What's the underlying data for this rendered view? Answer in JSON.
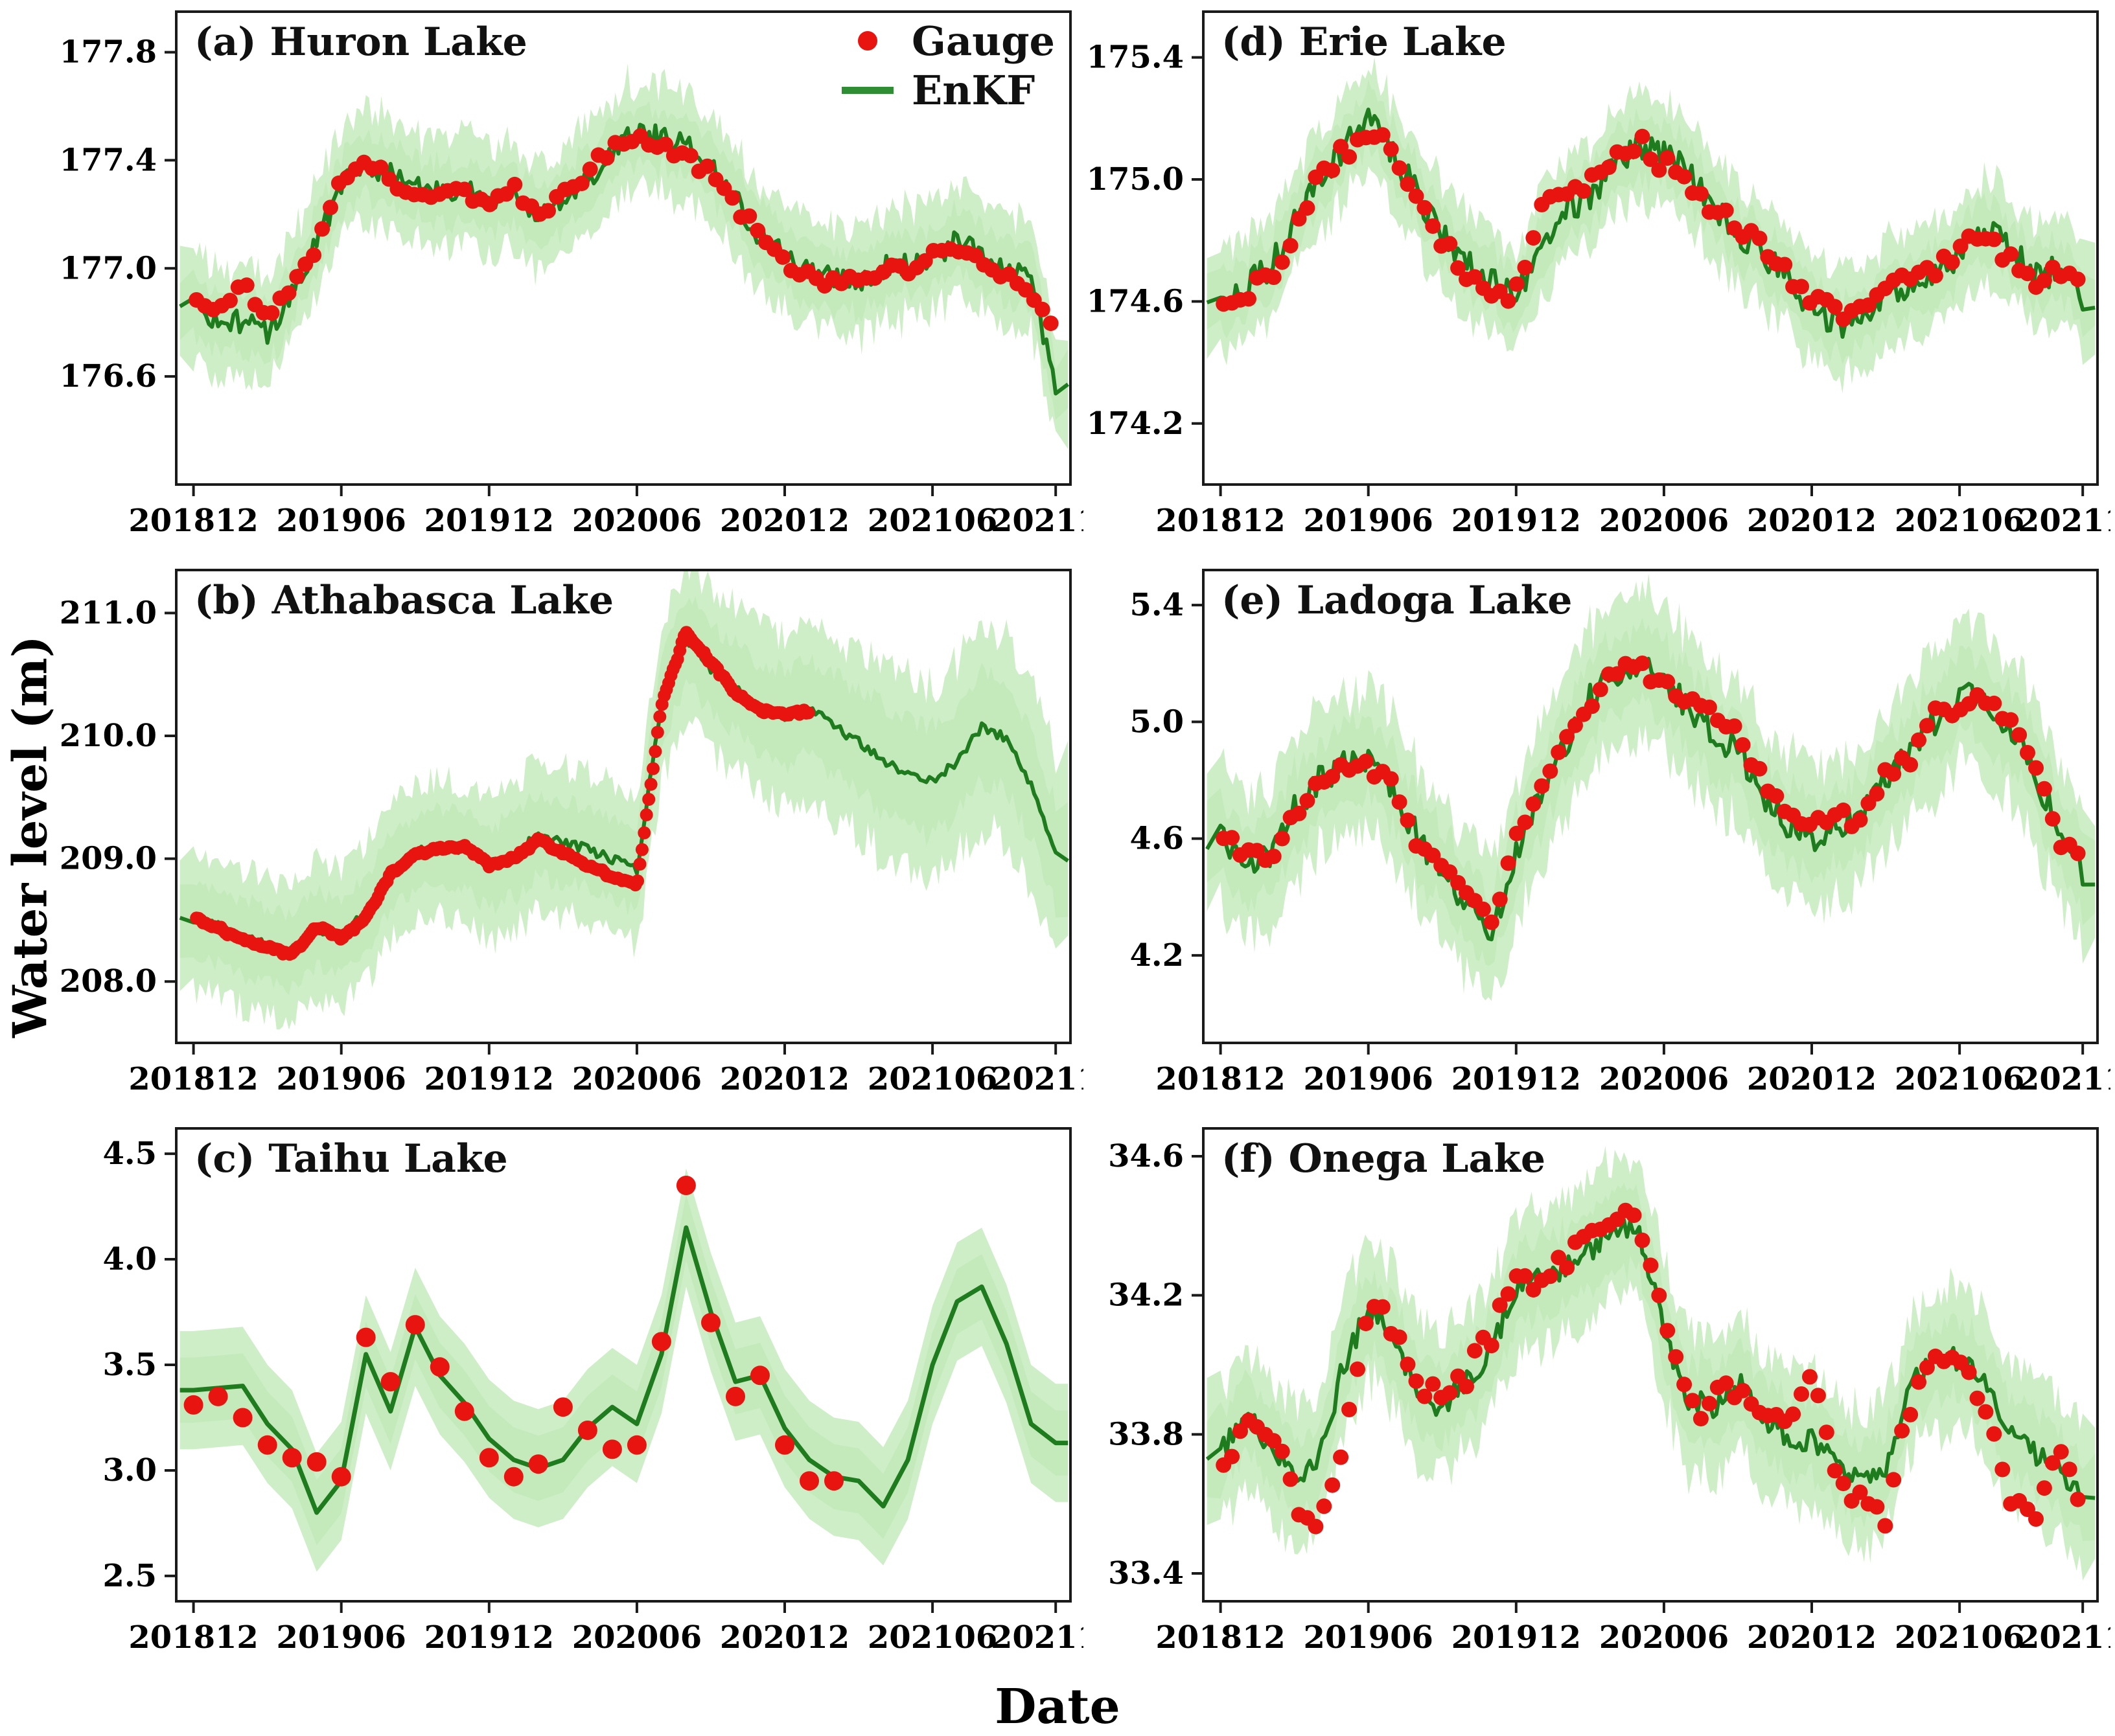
{
  "figure": {
    "ylabel": "Water level (m)",
    "xlabel": "Date",
    "legend": {
      "gauge_label": "Gauge",
      "enkf_label": "EnKF"
    },
    "colors": {
      "enkf_line": "#1e7b1e",
      "band_outer": "#cdeec6",
      "band_inner": "#bfe7b4",
      "gauge": "#e81410",
      "axis": "#1a1a1a"
    },
    "x_axis": {
      "unit": "months since 201812",
      "tick_months": [
        0,
        6,
        12,
        18,
        24,
        30,
        35
      ],
      "tick_labels": [
        "201812",
        "201906",
        "201912",
        "202006",
        "202012",
        "202106",
        "202111"
      ]
    }
  },
  "chart_data": [
    {
      "id": "a",
      "title": "(a) Huron Lake",
      "type": "line",
      "series_names": [
        "Gauge",
        "EnKF",
        "EnKF spread band"
      ],
      "ylim": [
        176.2,
        177.95
      ],
      "yticks": [
        176.6,
        177.0,
        177.4,
        177.8
      ],
      "ytick_labels": [
        "176.6",
        "177.0",
        "177.4",
        "177.8"
      ],
      "enkf_monthly": [
        176.85,
        176.82,
        176.8,
        176.76,
        176.92,
        177.1,
        177.3,
        177.38,
        177.35,
        177.3,
        177.28,
        177.3,
        177.25,
        177.28,
        177.18,
        177.25,
        177.33,
        177.44,
        177.5,
        177.48,
        177.45,
        177.38,
        177.25,
        177.12,
        177.05,
        176.98,
        176.96,
        176.95,
        177.0,
        177.02,
        177.05,
        177.1,
        177.05,
        177.0,
        176.97,
        176.55
      ],
      "gauge_monthly": [
        176.88,
        176.85,
        176.95,
        176.8,
        176.95,
        177.08,
        177.32,
        177.42,
        177.33,
        177.25,
        177.3,
        177.28,
        177.22,
        177.3,
        177.18,
        177.28,
        177.36,
        177.45,
        177.47,
        177.45,
        177.42,
        177.35,
        177.22,
        177.15,
        177.02,
        176.97,
        176.95,
        176.97,
        176.98,
        177.0,
        177.04,
        177.08,
        177.02,
        176.98,
        176.92,
        176.75
      ],
      "band_halfwidth": 0.2,
      "gauge_end_month": 35,
      "gauge_dense": false,
      "style": {
        "seed": 1,
        "line_noise": 0.045,
        "band_noise": 0.3,
        "gauge_jitter": 0.03,
        "dot_r": 12,
        "dot_step": 0.34,
        "sample_step": 0.125
      }
    },
    {
      "id": "b",
      "title": "(b) Athabasca Lake",
      "type": "line",
      "series_names": [
        "Gauge",
        "EnKF",
        "EnKF spread band"
      ],
      "ylim": [
        207.5,
        211.35
      ],
      "yticks": [
        208.0,
        209.0,
        210.0,
        211.0
      ],
      "ytick_labels": [
        "208.0",
        "209.0",
        "210.0",
        "211.0"
      ],
      "enkf_monthly": [
        208.5,
        208.45,
        208.35,
        208.3,
        208.25,
        208.42,
        208.38,
        208.55,
        208.9,
        209.05,
        209.1,
        209.05,
        208.92,
        209.02,
        209.2,
        209.12,
        209.08,
        209.0,
        208.9,
        210.3,
        210.78,
        210.55,
        210.38,
        210.22,
        210.15,
        210.22,
        210.08,
        209.95,
        209.8,
        209.68,
        209.62,
        209.8,
        210.08,
        209.98,
        209.6,
        209.02
      ],
      "gauge_monthly": [
        208.52,
        208.44,
        208.33,
        208.28,
        208.22,
        208.45,
        208.35,
        208.52,
        208.88,
        209.03,
        209.08,
        209.1,
        208.95,
        209.0,
        209.15,
        209.05,
        208.95,
        208.85,
        208.78,
        210.25,
        210.85,
        210.6,
        210.35,
        210.2,
        210.18,
        210.2
      ],
      "band_halfwidth": [
        0.55,
        0.55,
        0.55,
        0.55,
        0.55,
        0.55,
        0.55,
        0.55,
        0.55,
        0.55,
        0.55,
        0.55,
        0.6,
        0.6,
        0.6,
        0.6,
        0.6,
        0.6,
        0.65,
        0.65,
        0.65,
        0.65,
        0.65,
        0.65,
        0.7,
        0.7,
        0.75,
        0.75,
        0.8,
        0.8,
        0.8,
        0.8,
        0.8,
        0.8,
        0.8,
        0.8
      ],
      "gauge_end_month": 25,
      "gauge_dense": true,
      "style": {
        "seed": 2,
        "line_noise": 0.04,
        "band_noise": 0.22,
        "gauge_jitter": 0.02,
        "dot_r": 10,
        "dot_step": 0.09,
        "sample_step": 0.125
      }
    },
    {
      "id": "c",
      "title": "(c) Taihu Lake",
      "type": "line",
      "series_names": [
        "Gauge",
        "EnKF",
        "EnKF spread band"
      ],
      "ylim": [
        2.38,
        4.62
      ],
      "yticks": [
        2.5,
        3.0,
        3.5,
        4.0,
        4.5
      ],
      "ytick_labels": [
        "2.5",
        "3.0",
        "3.5",
        "4.0",
        "4.5"
      ],
      "enkf_monthly": [
        3.38,
        3.39,
        3.4,
        3.22,
        3.1,
        2.8,
        2.95,
        3.55,
        3.28,
        3.68,
        3.45,
        3.32,
        3.15,
        3.05,
        3.01,
        3.05,
        3.2,
        3.3,
        3.22,
        3.55,
        4.15,
        3.75,
        3.42,
        3.45,
        3.2,
        3.05,
        2.97,
        2.95,
        2.83,
        3.05,
        3.5,
        3.8,
        3.87,
        3.6,
        3.22,
        3.13
      ],
      "gauge_monthly": [
        3.31,
        3.35,
        3.25,
        3.12,
        3.06,
        3.04,
        2.97,
        3.63,
        3.42,
        3.69,
        3.49,
        3.28,
        3.06,
        2.97,
        3.03,
        3.3,
        3.19,
        3.1,
        3.12,
        3.61,
        4.35,
        3.7,
        3.35,
        3.45,
        3.12,
        2.95,
        2.95
      ],
      "band_halfwidth": 0.28,
      "gauge_end_month": 26,
      "gauge_dense": false,
      "style": {
        "seed": 3,
        "line_noise": 0,
        "band_noise": 0,
        "gauge_jitter": 0,
        "dot_r": 15,
        "dot_step": 1,
        "sample_step": 1
      }
    },
    {
      "id": "d",
      "title": "(d) Erie Lake",
      "type": "line",
      "series_names": [
        "Gauge",
        "EnKF",
        "EnKF spread band"
      ],
      "ylim": [
        174.0,
        175.55
      ],
      "yticks": [
        174.2,
        174.6,
        175.0,
        175.4
      ],
      "ytick_labels": [
        "174.2",
        "174.6",
        "175.0",
        "175.4"
      ],
      "enkf_monthly": [
        174.6,
        174.65,
        174.72,
        174.85,
        175.0,
        175.1,
        175.2,
        175.08,
        174.95,
        174.82,
        174.72,
        174.68,
        174.6,
        174.78,
        174.9,
        174.95,
        175.05,
        175.1,
        175.08,
        175.02,
        174.92,
        174.82,
        174.75,
        174.68,
        174.58,
        174.52,
        174.55,
        174.62,
        174.65,
        174.68,
        174.75,
        174.85,
        174.78,
        174.68,
        174.7,
        174.62
      ],
      "gauge_monthly": [
        174.55,
        174.62,
        174.68,
        174.8,
        175.02,
        175.08,
        175.18,
        175.1,
        174.92,
        174.8,
        174.7,
        174.65,
        174.62,
        174.92,
        174.95,
        174.98,
        175.05,
        175.12,
        175.05,
        175.0,
        174.9,
        174.85,
        174.78,
        174.7,
        174.62,
        174.55,
        174.58,
        174.65,
        174.68,
        174.7,
        174.78,
        174.82,
        174.75,
        174.65,
        174.72,
        174.65
      ],
      "band_halfwidth": 0.17,
      "gauge_end_month": 35,
      "gauge_dense": false,
      "style": {
        "seed": 4,
        "line_noise": 0.05,
        "band_noise": 0.3,
        "gauge_jitter": 0.035,
        "dot_r": 12,
        "dot_step": 0.34,
        "sample_step": 0.125
      }
    },
    {
      "id": "e",
      "title": "(e) Ladoga Lake",
      "type": "line",
      "series_names": [
        "Gauge",
        "EnKF",
        "EnKF spread band"
      ],
      "ylim": [
        3.9,
        5.52
      ],
      "yticks": [
        4.2,
        4.6,
        5.0,
        5.4
      ],
      "ytick_labels": [
        "4.2",
        "4.6",
        "5.0",
        "5.4"
      ],
      "enkf_monthly": [
        4.6,
        4.5,
        4.55,
        4.7,
        4.8,
        4.85,
        4.88,
        4.78,
        4.6,
        4.5,
        4.38,
        4.28,
        4.55,
        4.75,
        4.92,
        5.08,
        5.15,
        5.2,
        5.15,
        5.05,
        4.95,
        4.9,
        4.75,
        4.65,
        4.6,
        4.65,
        4.68,
        4.8,
        4.9,
        5.0,
        5.1,
        5.05,
        5.0,
        4.85,
        4.62,
        4.48
      ],
      "gauge_monthly": [
        4.62,
        4.55,
        4.52,
        4.68,
        4.78,
        4.85,
        4.85,
        4.8,
        4.58,
        4.52,
        4.42,
        4.3,
        4.6,
        4.78,
        4.95,
        5.05,
        5.18,
        5.18,
        5.12,
        5.08,
        5.02,
        4.95,
        4.8,
        4.68,
        4.63,
        4.68,
        4.65,
        4.82,
        4.88,
        5.02,
        5.05,
        5.08,
        5.0,
        4.88,
        4.6,
        4.55
      ],
      "band_halfwidth": 0.24,
      "gauge_end_month": 35,
      "gauge_dense": false,
      "style": {
        "seed": 5,
        "line_noise": 0.05,
        "band_noise": 0.3,
        "gauge_jitter": 0.03,
        "dot_r": 12,
        "dot_step": 0.34,
        "sample_step": 0.125
      }
    },
    {
      "id": "f",
      "title": "(f) Onega Lake",
      "type": "line",
      "series_names": [
        "Gauge",
        "EnKF",
        "EnKF spread band"
      ],
      "ylim": [
        33.32,
        34.68
      ],
      "yticks": [
        33.4,
        33.8,
        34.2,
        34.6
      ],
      "ytick_labels": [
        "33.4",
        "33.8",
        "34.2",
        "34.6"
      ],
      "enkf_monthly": [
        33.75,
        33.85,
        33.78,
        33.68,
        33.72,
        34.0,
        34.17,
        34.08,
        33.92,
        33.88,
        33.95,
        34.05,
        34.22,
        34.25,
        34.28,
        34.33,
        34.4,
        34.38,
        34.1,
        33.9,
        33.88,
        33.95,
        33.85,
        33.8,
        33.78,
        33.72,
        33.65,
        33.7,
        33.95,
        34.0,
        34.02,
        33.95,
        33.8,
        33.75,
        33.7,
        33.62
      ],
      "gauge_monthly": [
        33.72,
        33.82,
        33.8,
        33.62,
        33.55,
        33.8,
        34.18,
        34.12,
        33.95,
        33.9,
        33.98,
        34.1,
        34.25,
        34.22,
        34.3,
        34.38,
        34.42,
        34.4,
        34.15,
        33.88,
        33.9,
        33.92,
        33.88,
        33.85,
        34.0,
        33.7,
        33.6,
        33.58,
        33.9,
        34.02,
        34.03,
        33.88,
        33.62,
        33.57,
        33.72,
        33.6
      ],
      "band_halfwidth": 0.2,
      "gauge_end_month": 35,
      "gauge_dense": false,
      "style": {
        "seed": 6,
        "line_noise": 0.035,
        "band_noise": 0.3,
        "gauge_jitter": 0.045,
        "dot_r": 12,
        "dot_step": 0.34,
        "sample_step": 0.125
      }
    }
  ]
}
